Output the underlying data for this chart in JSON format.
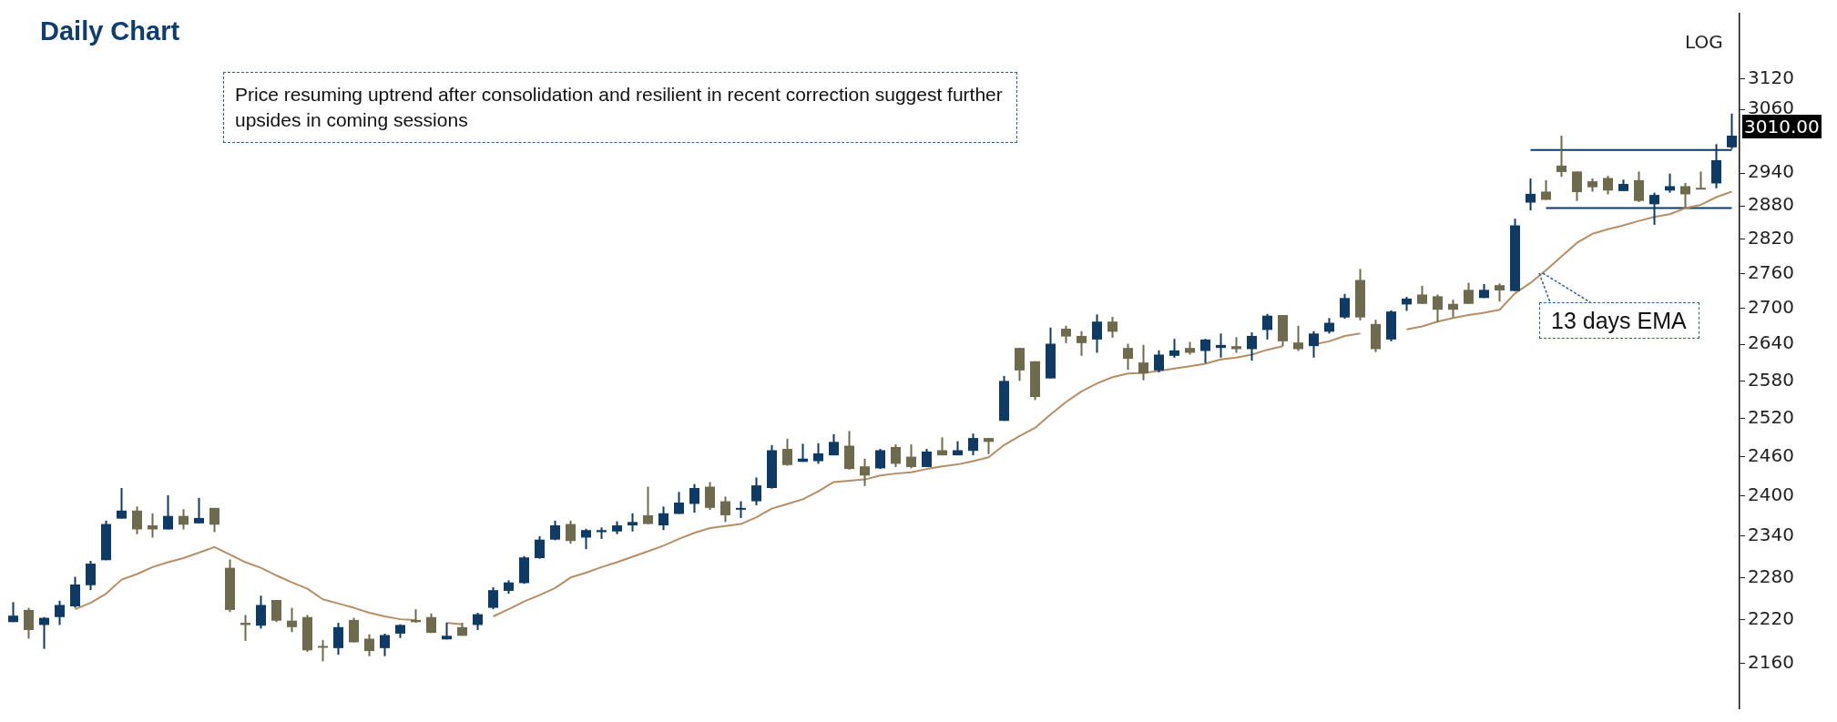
{
  "chart_data": {
    "type": "candlestick",
    "title": "Daily Chart",
    "categories": [
      null,
      null,
      null,
      null,
      null,
      null,
      null,
      null,
      null,
      null,
      null,
      null,
      null,
      null,
      null,
      null,
      null,
      null,
      null,
      null,
      null,
      null,
      null,
      null,
      null,
      null,
      null,
      null,
      null,
      null,
      null,
      null,
      null,
      null,
      null,
      null,
      null,
      null,
      null,
      null,
      null,
      null,
      null,
      null,
      null,
      null,
      null,
      null,
      null,
      null,
      null,
      null,
      null,
      null,
      null,
      null,
      null,
      null,
      null,
      null,
      null,
      null,
      null,
      null,
      null,
      null,
      null,
      null,
      null,
      null,
      null,
      null,
      null,
      null,
      null,
      null,
      null,
      null,
      null,
      null,
      null,
      null,
      null,
      null,
      null,
      null,
      null,
      null,
      null,
      null,
      null,
      null,
      null,
      null,
      null,
      null,
      null,
      null,
      null,
      null,
      null,
      null,
      null,
      null,
      null,
      null,
      null,
      null,
      null,
      null,
      null,
      null
    ],
    "ohlc": [
      [
        2217,
        2245,
        2217,
        2226
      ],
      [
        2234,
        2237,
        2194,
        2206
      ],
      [
        2213,
        2224,
        2180,
        2223
      ],
      [
        2224,
        2247,
        2213,
        2241
      ],
      [
        2239,
        2281,
        2237,
        2270
      ],
      [
        2269,
        2304,
        2262,
        2300
      ],
      [
        2305,
        2363,
        2305,
        2358
      ],
      [
        2366,
        2412,
        2366,
        2378
      ],
      [
        2378,
        2384,
        2343,
        2350
      ],
      [
        2356,
        2374,
        2338,
        2350
      ],
      [
        2350,
        2401,
        2350,
        2370
      ],
      [
        2370,
        2380,
        2350,
        2357
      ],
      [
        2359,
        2397,
        2359,
        2367
      ],
      [
        2382,
        2382,
        2346,
        2357
      ],
      [
        2294,
        2306,
        2231,
        2234
      ],
      [
        2216,
        2227,
        2191,
        2213
      ],
      [
        2212,
        2254,
        2208,
        2241
      ],
      [
        2248,
        2248,
        2217,
        2219
      ],
      [
        2219,
        2237,
        2203,
        2210
      ],
      [
        2224,
        2227,
        2176,
        2178
      ],
      [
        2184,
        2192,
        2163,
        2182
      ],
      [
        2181,
        2216,
        2172,
        2210
      ],
      [
        2220,
        2223,
        2189,
        2189
      ],
      [
        2194,
        2200,
        2170,
        2177
      ],
      [
        2181,
        2201,
        2170,
        2199
      ],
      [
        2201,
        2214,
        2195,
        2213
      ],
      [
        2220,
        2235,
        2216,
        2217
      ],
      [
        2224,
        2229,
        2202,
        2202
      ],
      [
        2193,
        2216,
        2193,
        2198
      ],
      [
        2210,
        2216,
        2198,
        2198
      ],
      [
        2213,
        2230,
        2206,
        2228
      ],
      [
        2237,
        2266,
        2235,
        2262
      ],
      [
        2261,
        2276,
        2257,
        2273
      ],
      [
        2272,
        2311,
        2271,
        2309
      ],
      [
        2308,
        2340,
        2307,
        2335
      ],
      [
        2335,
        2363,
        2334,
        2356
      ],
      [
        2358,
        2363,
        2329,
        2333
      ],
      [
        2338,
        2351,
        2321,
        2349
      ],
      [
        2346,
        2353,
        2336,
        2349
      ],
      [
        2347,
        2362,
        2343,
        2356
      ],
      [
        2356,
        2374,
        2347,
        2361
      ],
      [
        2371,
        2414,
        2358,
        2358
      ],
      [
        2356,
        2384,
        2349,
        2374
      ],
      [
        2373,
        2406,
        2373,
        2390
      ],
      [
        2388,
        2418,
        2375,
        2412
      ],
      [
        2414,
        2421,
        2379,
        2382
      ],
      [
        2392,
        2399,
        2361,
        2371
      ],
      [
        2380,
        2392,
        2367,
        2382
      ],
      [
        2392,
        2428,
        2386,
        2416
      ],
      [
        2412,
        2478,
        2411,
        2470
      ],
      [
        2472,
        2488,
        2446,
        2447
      ],
      [
        2452,
        2480,
        2452,
        2457
      ],
      [
        2453,
        2481,
        2449,
        2465
      ],
      [
        2462,
        2495,
        2462,
        2483
      ],
      [
        2477,
        2500,
        2440,
        2441
      ],
      [
        2445,
        2457,
        2415,
        2431
      ],
      [
        2442,
        2472,
        2441,
        2470
      ],
      [
        2475,
        2479,
        2444,
        2449
      ],
      [
        2460,
        2479,
        2442,
        2444
      ],
      [
        2444,
        2472,
        2444,
        2468
      ],
      [
        2470,
        2490,
        2462,
        2462
      ],
      [
        2462,
        2484,
        2462,
        2470
      ],
      [
        2469,
        2496,
        2462,
        2489
      ],
      [
        2489,
        2489,
        2464,
        2483
      ],
      [
        2516,
        2588,
        2516,
        2580
      ],
      [
        2634,
        2634,
        2580,
        2597
      ],
      [
        2612,
        2612,
        2549,
        2554
      ],
      [
        2584,
        2668,
        2584,
        2641
      ],
      [
        2666,
        2671,
        2642,
        2653
      ],
      [
        2654,
        2662,
        2621,
        2642
      ],
      [
        2648,
        2690,
        2626,
        2678
      ],
      [
        2678,
        2686,
        2651,
        2661
      ],
      [
        2634,
        2641,
        2598,
        2616
      ],
      [
        2610,
        2639,
        2581,
        2592
      ],
      [
        2597,
        2630,
        2594,
        2623
      ],
      [
        2621,
        2649,
        2618,
        2630
      ],
      [
        2634,
        2644,
        2623,
        2626
      ],
      [
        2629,
        2649,
        2609,
        2648
      ],
      [
        2634,
        2658,
        2618,
        2639
      ],
      [
        2637,
        2652,
        2626,
        2632
      ],
      [
        2632,
        2660,
        2613,
        2654
      ],
      [
        2664,
        2691,
        2648,
        2688
      ],
      [
        2689,
        2689,
        2637,
        2645
      ],
      [
        2643,
        2671,
        2629,
        2632
      ],
      [
        2637,
        2662,
        2618,
        2658
      ],
      [
        2661,
        2684,
        2658,
        2676
      ],
      [
        2685,
        2725,
        2683,
        2718
      ],
      [
        2749,
        2768,
        2680,
        2685
      ],
      [
        2674,
        2681,
        2627,
        2632
      ],
      [
        2648,
        2697,
        2645,
        2695
      ],
      [
        2707,
        2720,
        2696,
        2717
      ],
      [
        2724,
        2739,
        2708,
        2708
      ],
      [
        2721,
        2724,
        2677,
        2698
      ],
      [
        2708,
        2715,
        2685,
        2698
      ],
      [
        2732,
        2744,
        2708,
        2708
      ],
      [
        2718,
        2742,
        2718,
        2732
      ],
      [
        2740,
        2743,
        2712,
        2731
      ],
      [
        2730,
        2857,
        2730,
        2845
      ],
      [
        2886,
        2930,
        2872,
        2902
      ],
      [
        2906,
        2927,
        2891,
        2891
      ],
      [
        2954,
        3010,
        2933,
        2942
      ],
      [
        2943,
        2943,
        2889,
        2905
      ],
      [
        2925,
        2930,
        2906,
        2914
      ],
      [
        2931,
        2935,
        2901,
        2908
      ],
      [
        2907,
        2928,
        2907,
        2920
      ],
      [
        2927,
        2943,
        2887,
        2889
      ],
      [
        2883,
        2904,
        2846,
        2900
      ],
      [
        2908,
        2939,
        2904,
        2916
      ],
      [
        2916,
        2922,
        2876,
        2901
      ],
      [
        2913,
        2943,
        2910,
        2910
      ],
      [
        2921,
        2994,
        2912,
        2964
      ],
      [
        2988,
        3052,
        2985,
        3010
      ]
    ],
    "colors": [
      "#0d3b66",
      "#6e6a4e",
      "#0d3b66",
      "#0d3b66",
      "#0d3b66",
      "#0d3b66",
      "#0d3b66",
      "#0d3b66",
      "#6e6a4e",
      "#6e6a4e",
      "#0d3b66",
      "#6e6a4e",
      "#0d3b66",
      "#6e6a4e",
      "#6e6a4e",
      "#6e6a4e",
      "#0d3b66",
      "#6e6a4e",
      "#6e6a4e",
      "#6e6a4e",
      "#6e6a4e",
      "#0d3b66",
      "#6e6a4e",
      "#6e6a4e",
      "#0d3b66",
      "#0d3b66",
      "#6e6a4e",
      "#6e6a4e",
      "#0d3b66",
      "#6e6a4e",
      "#0d3b66",
      "#0d3b66",
      "#0d3b66",
      "#0d3b66",
      "#0d3b66",
      "#0d3b66",
      "#6e6a4e",
      "#0d3b66",
      "#0d3b66",
      "#0d3b66",
      "#0d3b66",
      "#6e6a4e",
      "#0d3b66",
      "#0d3b66",
      "#0d3b66",
      "#6e6a4e",
      "#6e6a4e",
      "#0d3b66",
      "#0d3b66",
      "#0d3b66",
      "#6e6a4e",
      "#0d3b66",
      "#0d3b66",
      "#0d3b66",
      "#6e6a4e",
      "#6e6a4e",
      "#0d3b66",
      "#6e6a4e",
      "#6e6a4e",
      "#0d3b66",
      "#6e6a4e",
      "#0d3b66",
      "#0d3b66",
      "#6e6a4e",
      "#0d3b66",
      "#6e6a4e",
      "#6e6a4e",
      "#0d3b66",
      "#6e6a4e",
      "#6e6a4e",
      "#0d3b66",
      "#6e6a4e",
      "#6e6a4e",
      "#6e6a4e",
      "#0d3b66",
      "#0d3b66",
      "#6e6a4e",
      "#0d3b66",
      "#0d3b66",
      "#6e6a4e",
      "#0d3b66",
      "#0d3b66",
      "#6e6a4e",
      "#6e6a4e",
      "#0d3b66",
      "#0d3b66",
      "#0d3b66",
      "#6e6a4e",
      "#6e6a4e",
      "#0d3b66",
      "#0d3b66",
      "#6e6a4e",
      "#6e6a4e",
      "#6e6a4e",
      "#6e6a4e",
      "#0d3b66",
      "#6e6a4e",
      "#0d3b66",
      "#0d3b66",
      "#6e6a4e",
      "#6e6a4e",
      "#6e6a4e",
      "#6e6a4e",
      "#6e6a4e",
      "#0d3b66",
      "#6e6a4e",
      "#0d3b66",
      "#0d3b66",
      "#6e6a4e",
      "#6e6a4e",
      "#0d3b66",
      "#0d3b66"
    ],
    "series": [
      {
        "type": "line",
        "color": "#b58e66",
        "values": [
          null,
          null,
          null,
          null,
          2235,
          2244,
          2257,
          2277,
          2285,
          2295,
          2302,
          2308,
          2316,
          2324,
          2313,
          2302,
          2294,
          2283,
          2273,
          2264,
          2249,
          2243,
          2237,
          2230,
          2225,
          2221,
          2220,
          null,
          2216,
          2214,
          null,
          2225,
          2235,
          2246,
          2255,
          2265,
          2280,
          2287,
          2295,
          2302,
          2310,
          2318,
          2326,
          2336,
          2345,
          2352,
          2355,
          2358,
          2368,
          2381,
          2388,
          2395,
          2407,
          2421,
          2423,
          2425,
          2431,
          2434,
          2436,
          2441,
          2445,
          2448,
          2453,
          2459,
          2478,
          2492,
          2505,
          2526,
          2546,
          2563,
          2576,
          2586,
          2592,
          2593,
          2596,
          2600,
          2604,
          2608,
          2615,
          2618,
          2623,
          2631,
          2637,
          null,
          2640,
          2645,
          2654,
          2658,
          null,
          null,
          2665,
          2670,
          2678,
          2684,
          2689,
          2693,
          2698,
          2726,
          2744,
          2766,
          2790,
          2814,
          2830,
          2838,
          2845,
          2853,
          2860,
          2865,
          2876,
          2882,
          2896,
          2906
        ]
      },
      {
        "type": "line",
        "color": "#0d3b66",
        "values": [
          null,
          null,
          null,
          null,
          null,
          null,
          null,
          null,
          null,
          null,
          null,
          null,
          null,
          null,
          null,
          null,
          null,
          null,
          null,
          null,
          null,
          null,
          null,
          null,
          null,
          null,
          null,
          null,
          null,
          null,
          null,
          null,
          null,
          null,
          null,
          null,
          null,
          null,
          null,
          null,
          null,
          null,
          null,
          null,
          null,
          null,
          null,
          null,
          null,
          null,
          null,
          null,
          null,
          null,
          null,
          null,
          null,
          null,
          null,
          null,
          null,
          null,
          null,
          null,
          null,
          null,
          null,
          null,
          null,
          null,
          null,
          null,
          null,
          null,
          null,
          null,
          null,
          null,
          null,
          null,
          null,
          null,
          null,
          null,
          null,
          null,
          null,
          null,
          null,
          null,
          null,
          null,
          null,
          null,
          null,
          null,
          null,
          null,
          2983,
          2983,
          2983,
          2983,
          2983,
          2983,
          2983,
          2983,
          2983,
          2983,
          2983,
          2983,
          2983,
          2983
        ]
      },
      {
        "type": "line",
        "color": "#0d3b66",
        "values": [
          null,
          null,
          null,
          null,
          null,
          null,
          null,
          null,
          null,
          null,
          null,
          null,
          null,
          null,
          null,
          null,
          null,
          null,
          null,
          null,
          null,
          null,
          null,
          null,
          null,
          null,
          null,
          null,
          null,
          null,
          null,
          null,
          null,
          null,
          null,
          null,
          null,
          null,
          null,
          null,
          null,
          null,
          null,
          null,
          null,
          null,
          null,
          null,
          null,
          null,
          null,
          null,
          null,
          null,
          null,
          null,
          null,
          null,
          null,
          null,
          null,
          null,
          null,
          null,
          null,
          null,
          null,
          null,
          null,
          null,
          null,
          null,
          null,
          null,
          null,
          null,
          null,
          null,
          null,
          null,
          null,
          null,
          null,
          null,
          null,
          null,
          null,
          null,
          null,
          null,
          null,
          null,
          null,
          null,
          null,
          null,
          null,
          null,
          null,
          2876,
          2876,
          2876,
          2876,
          2876,
          2876,
          2876,
          2876,
          2876,
          2876,
          2876,
          2876,
          2876
        ]
      }
    ],
    "ylim": [
      2100,
      3250
    ],
    "yticks": [
      2160,
      2220,
      2280,
      2340,
      2400,
      2460,
      2520,
      2580,
      2640,
      2700,
      2760,
      2820,
      2880,
      2940,
      3060,
      3120
    ],
    "log": true,
    "marker": "none",
    "tick_labels": "y",
    "annotations": [
      "LOG",
      "Price resuming uptrend after consolidation and resilient in recent correction suggest further upsides in coming sessions",
      "13 days EMA",
      "3010.00"
    ]
  }
}
